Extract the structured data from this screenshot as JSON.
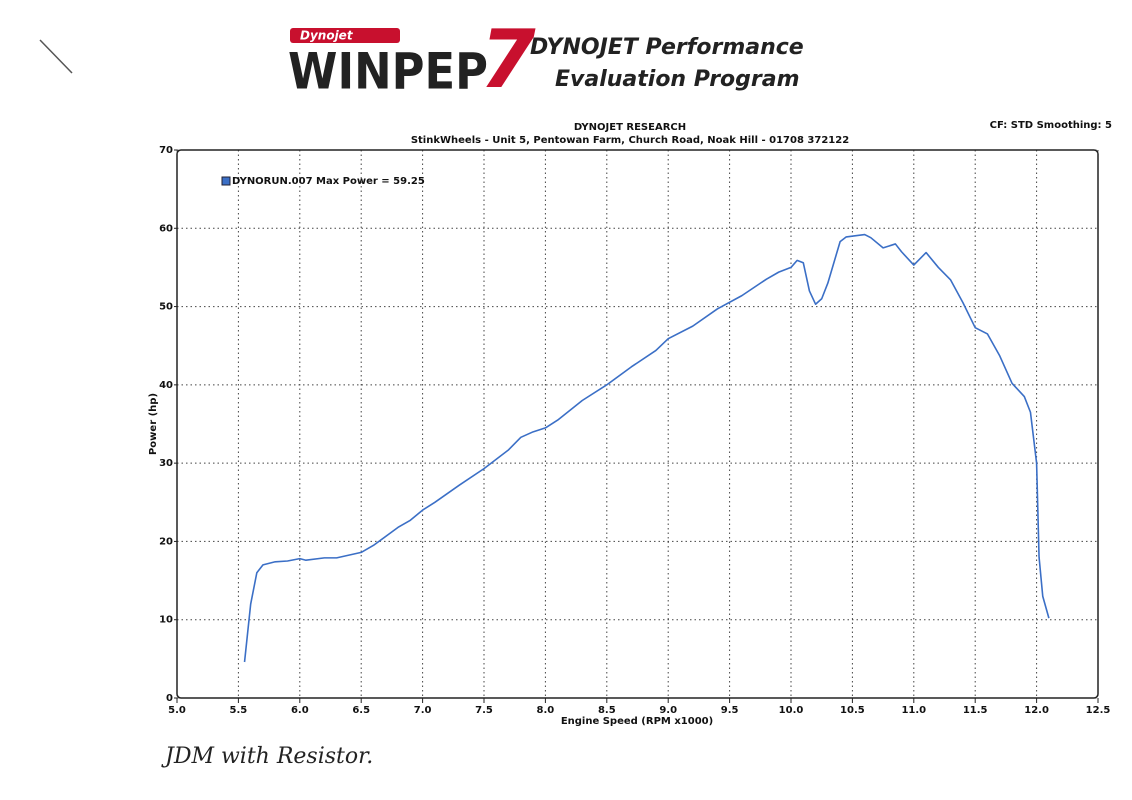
{
  "header": {
    "brand": "Dynojet",
    "logo": "WINPEP",
    "logo_number": "7",
    "tagline_1": "DYNOJET Performance",
    "tagline_2": "Evaluation Program"
  },
  "chart_data": {
    "type": "line",
    "title": "DYNOJET RESEARCH",
    "subtitle": "StinkWheels - Unit 5, Pentowan Farm, Church Road, Noak Hill - 01708 372122",
    "settings_note": "CF: STD  Smoothing: 5",
    "x_label": "Engine Speed (RPM x1000)",
    "y_label": "Power (hp)",
    "annotation": "JDM with Resistor.",
    "x": [
      5.55,
      5.6,
      5.65,
      5.7,
      5.8,
      5.9,
      6.0,
      6.05,
      6.2,
      6.3,
      6.5,
      6.6,
      6.8,
      6.9,
      7.0,
      7.1,
      7.3,
      7.5,
      7.7,
      7.8,
      7.9,
      8.0,
      8.1,
      8.3,
      8.5,
      8.7,
      8.9,
      9.0,
      9.2,
      9.4,
      9.6,
      9.8,
      9.9,
      10.0,
      10.05,
      10.1,
      10.15,
      10.2,
      10.25,
      10.3,
      10.4,
      10.45,
      10.6,
      10.65,
      10.75,
      10.85,
      10.9,
      11.0,
      11.1,
      11.2,
      11.3,
      11.4,
      11.5,
      11.6,
      11.7,
      11.8,
      11.9,
      11.95,
      12.0,
      12.02,
      12.05,
      12.1
    ],
    "series": [
      {
        "name": "DYNORUN.007 Max Power = 59.25",
        "color": "#3b6fc6",
        "values": [
          4.6,
          12,
          16,
          17,
          17.4,
          17.5,
          17.8,
          17.6,
          17.9,
          17.9,
          18.6,
          19.5,
          21.8,
          22.7,
          24,
          25,
          27.2,
          29.3,
          31.7,
          33.3,
          34,
          34.5,
          35.5,
          38,
          40,
          42.3,
          44.4,
          45.9,
          47.5,
          49.7,
          51.4,
          53.5,
          54.4,
          55,
          55.9,
          55.6,
          52,
          50.3,
          51,
          53,
          58.3,
          58.9,
          59.2,
          58.8,
          57.5,
          58,
          57,
          55.3,
          56.9,
          55,
          53.4,
          50.5,
          47.3,
          46.5,
          43.7,
          40.2,
          38.5,
          36.5,
          30,
          18,
          13,
          10.2
        ]
      }
    ],
    "xlim": [
      5,
      12.5
    ],
    "xticks": [
      {
        "value": 5,
        "label": "5.0"
      },
      {
        "value": 5.5,
        "label": "5.5"
      },
      {
        "value": 6,
        "label": "6.0"
      },
      {
        "value": 6.5,
        "label": "6.5"
      },
      {
        "value": 7,
        "label": "7.0"
      },
      {
        "value": 7.5,
        "label": "7.5"
      },
      {
        "value": 8,
        "label": "8.0"
      },
      {
        "value": 8.5,
        "label": "8.5"
      },
      {
        "value": 9,
        "label": "9.0"
      },
      {
        "value": 9.5,
        "label": "9.5"
      },
      {
        "value": 10,
        "label": "10.0"
      },
      {
        "value": 10.5,
        "label": "10.5"
      },
      {
        "value": 11,
        "label": "11.0"
      },
      {
        "value": 11.5,
        "label": "11.5"
      },
      {
        "value": 12,
        "label": "12.0"
      },
      {
        "value": 12.5,
        "label": "12.5"
      }
    ],
    "ylim": [
      0,
      70
    ],
    "yticks": [
      0,
      10,
      20,
      30,
      40,
      50,
      60,
      70
    ],
    "grid": true,
    "legend": "upper left"
  }
}
